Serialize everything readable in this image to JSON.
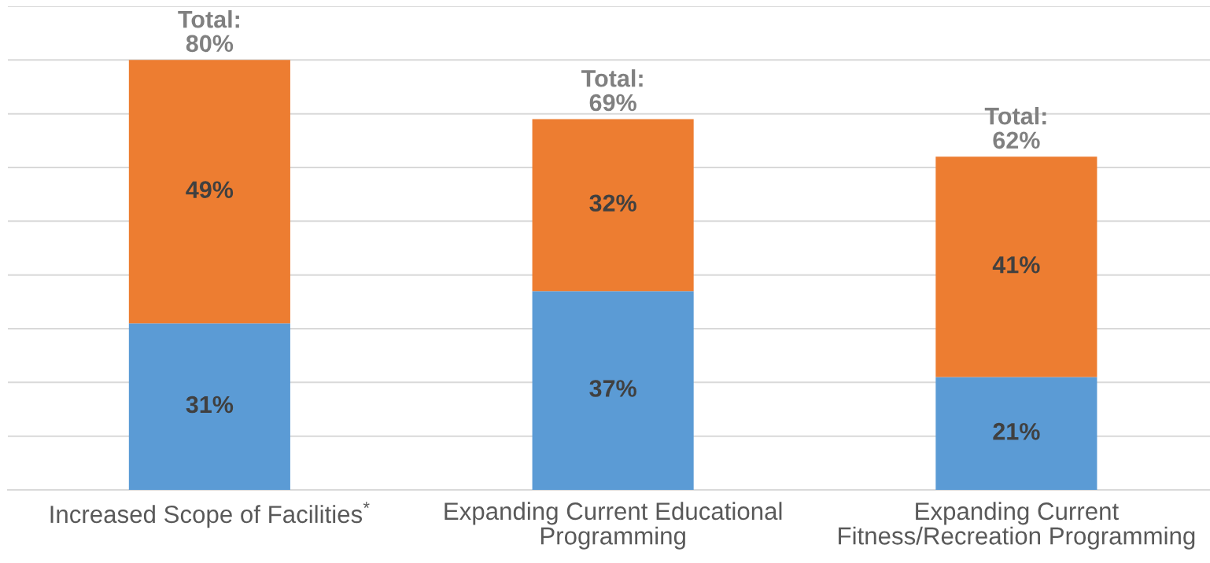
{
  "chart_data": {
    "type": "bar",
    "stacked": true,
    "categories": [
      "Increased Scope of Facilities$^{*}$",
      "Expanding Current Educational\nProgramming",
      "Expanding Current\nFitness/Recreation Programming"
    ],
    "series": [
      {
        "color": "#5b9bd5",
        "values": [
          31,
          37,
          21
        ],
        "value_labels": [
          "31%",
          "37%",
          "21%"
        ]
      },
      {
        "color": "#ed7d31",
        "values": [
          49,
          32,
          41
        ],
        "value_labels": [
          "49%",
          "32%",
          "41%"
        ]
      }
    ],
    "totals": [
      "Total:\n80%",
      "Total:\n69%",
      "Total:\n62%"
    ],
    "ylim": [
      0,
      90
    ],
    "yticks": [
      {
        "value": 0,
        "label": null
      },
      {
        "value": 10,
        "label": null
      },
      {
        "value": 20,
        "label": null
      },
      {
        "value": 30,
        "label": null
      },
      {
        "value": 40,
        "label": null
      },
      {
        "value": 50,
        "label": null
      },
      {
        "value": 60,
        "label": null
      },
      {
        "value": 70,
        "label": null
      },
      {
        "value": 80,
        "label": null
      },
      {
        "value": 90,
        "label": null
      }
    ],
    "grid": "y",
    "tick_labels": "x"
  }
}
